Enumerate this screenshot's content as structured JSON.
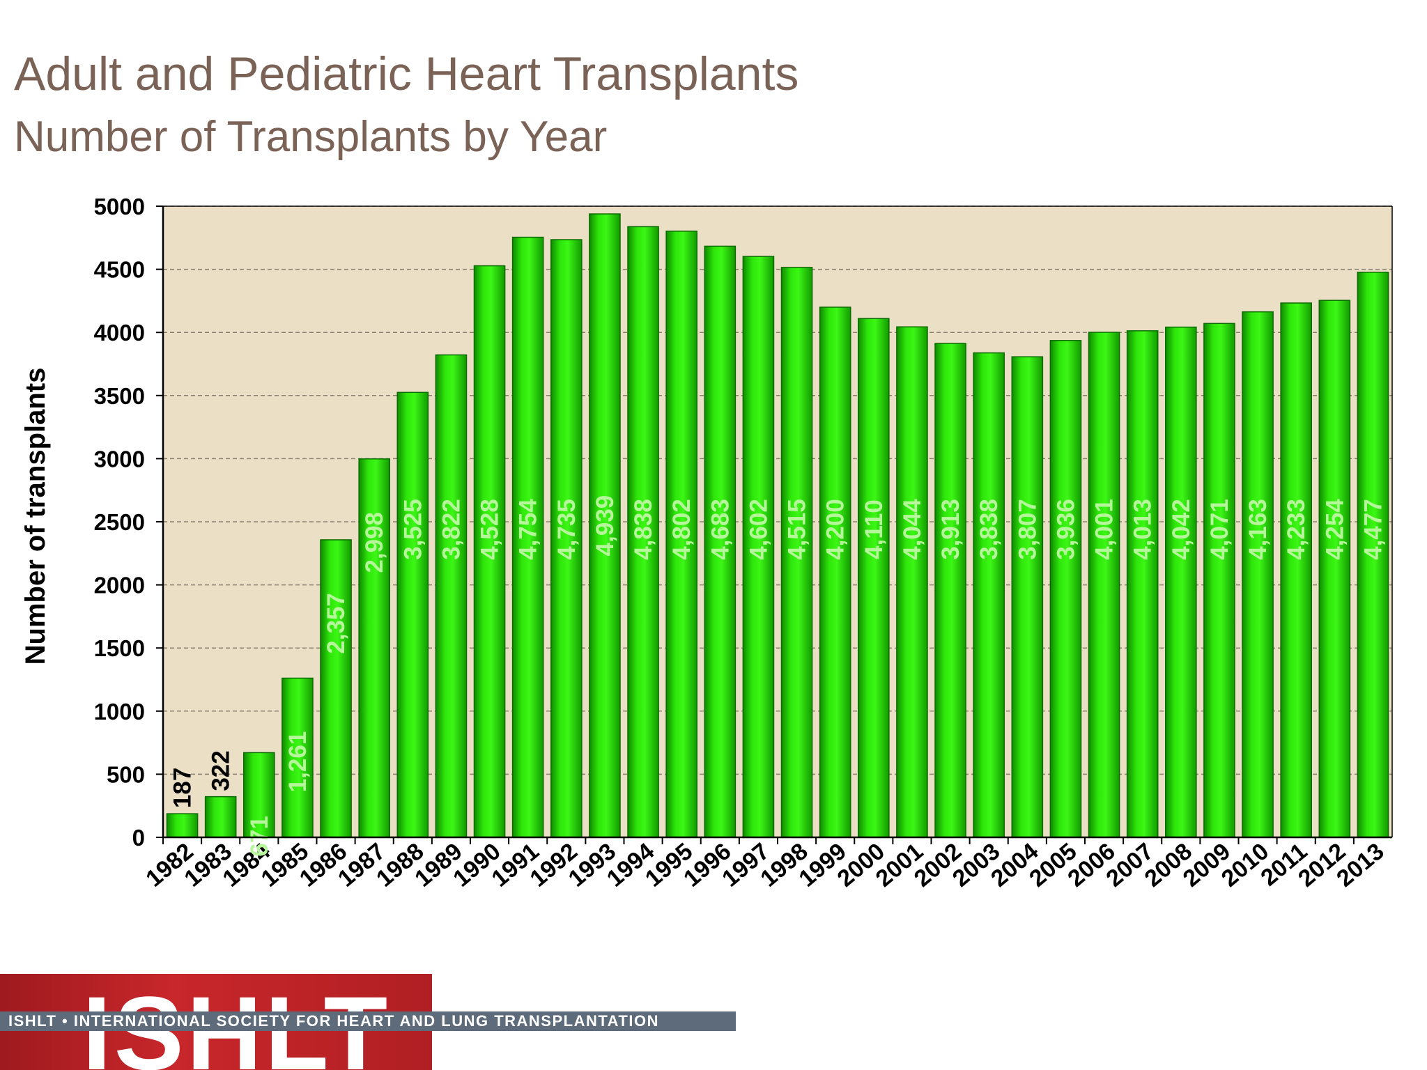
{
  "slide": {
    "title": "Adult and Pediatric Heart Transplants",
    "subtitle": "Number of Transplants by Year"
  },
  "chart_data": {
    "type": "bar",
    "title": "Adult and Pediatric Heart Transplants",
    "subtitle": "Number of Transplants by Year",
    "xlabel": "",
    "ylabel": "Number of transplants",
    "ylim": [
      0,
      5000
    ],
    "yticks": [
      0,
      500,
      1000,
      1500,
      2000,
      2500,
      3000,
      3500,
      4000,
      4500,
      5000
    ],
    "grid": "horizontal dashed",
    "legend": "none",
    "categories": [
      "1982",
      "1983",
      "1984",
      "1985",
      "1986",
      "1987",
      "1988",
      "1989",
      "1990",
      "1991",
      "1992",
      "1993",
      "1994",
      "1995",
      "1996",
      "1997",
      "1998",
      "1999",
      "2000",
      "2001",
      "2002",
      "2003",
      "2004",
      "2005",
      "2006",
      "2007",
      "2008",
      "2009",
      "2010",
      "2011",
      "2012",
      "2013"
    ],
    "values": [
      187,
      322,
      671,
      1261,
      2357,
      2998,
      3525,
      3822,
      4528,
      4754,
      4735,
      4939,
      4838,
      4802,
      4683,
      4602,
      4515,
      4200,
      4110,
      4044,
      3913,
      3838,
      3807,
      3936,
      4001,
      4013,
      4042,
      4071,
      4163,
      4233,
      4254,
      4477
    ],
    "data_labels": [
      "187",
      "322",
      "671",
      "1,261",
      "2,357",
      "2,998",
      "3,525",
      "3,822",
      "4,528",
      "4,754",
      "4,735",
      "4,939",
      "4,838",
      "4,802",
      "4,683",
      "4,602",
      "4,515",
      "4,200",
      "4,110",
      "4,044",
      "3,913",
      "3,838",
      "3,807",
      "3,936",
      "4,001",
      "4,013",
      "4,042",
      "4,071",
      "4,163",
      "4,233",
      "4,254",
      "4,477"
    ],
    "colors": {
      "bar": "#22dd00",
      "bar_edge": "#0c6b00",
      "plot_bg": "#ebdfc6",
      "label_inside": "#b6f79c",
      "label_outside": "#000000"
    }
  },
  "footer": {
    "logo_text": "ISHLT",
    "band_text": "ISHLT • INTERNATIONAL SOCIETY FOR HEART AND LUNG TRANSPLANTATION"
  }
}
